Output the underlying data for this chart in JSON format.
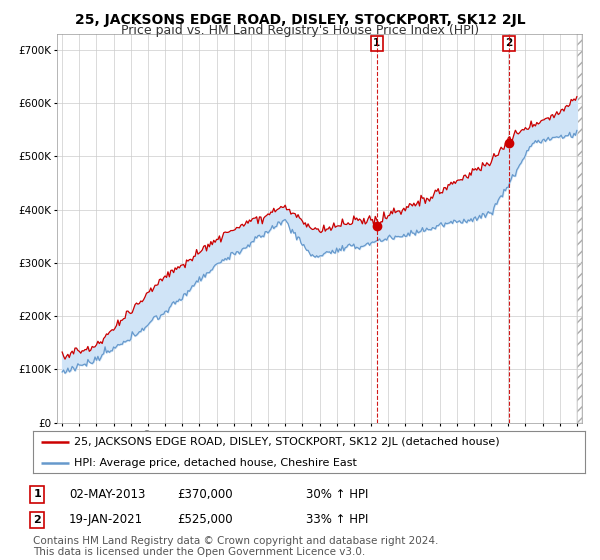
{
  "title": "25, JACKSONS EDGE ROAD, DISLEY, STOCKPORT, SK12 2JL",
  "subtitle": "Price paid vs. HM Land Registry's House Price Index (HPI)",
  "ylabel_ticks": [
    "£0",
    "£100K",
    "£200K",
    "£300K",
    "£400K",
    "£500K",
    "£600K",
    "£700K"
  ],
  "ylim": [
    0,
    730000
  ],
  "xlim_start": 1994.7,
  "xlim_end": 2025.3,
  "background_color": "#ffffff",
  "plot_bg_color": "#ffffff",
  "hpi_color": "#6699cc",
  "hpi_fill_color": "#d0e4f7",
  "price_color": "#cc0000",
  "dashed_line_color": "#cc0000",
  "marker1_x": 2013.34,
  "marker1_y": 370000,
  "marker1_label": "1",
  "marker2_x": 2021.05,
  "marker2_y": 525000,
  "marker2_label": "2",
  "legend_line1": "25, JACKSONS EDGE ROAD, DISLEY, STOCKPORT, SK12 2JL (detached house)",
  "legend_line2": "HPI: Average price, detached house, Cheshire East",
  "table_row1": [
    "1",
    "02-MAY-2013",
    "£370,000",
    "30% ↑ HPI"
  ],
  "table_row2": [
    "2",
    "19-JAN-2021",
    "£525,000",
    "33% ↑ HPI"
  ],
  "footnote": "Contains HM Land Registry data © Crown copyright and database right 2024.\nThis data is licensed under the Open Government Licence v3.0.",
  "title_fontsize": 10,
  "subtitle_fontsize": 9,
  "tick_fontsize": 7.5,
  "legend_fontsize": 8.5,
  "table_fontsize": 9,
  "footnote_fontsize": 7.5
}
